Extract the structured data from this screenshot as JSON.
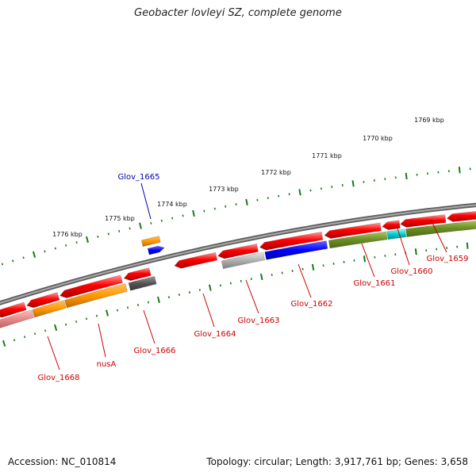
{
  "header": {
    "title": "Geobacter lovleyi SZ, complete genome"
  },
  "footer": {
    "accession": "Accession: NC_010814",
    "topology": "Topology: circular; Length: 3,917,761 bp; Genes: 3,658"
  },
  "colors": {
    "backbone": "#808080",
    "tick": "#1a7a1a",
    "gene_label": "#cc0000",
    "highlight_label": "#0000aa",
    "red": "#ff0000",
    "orange": "#ff9900",
    "blue": "#0000ff",
    "olive": "#6b8e23",
    "cyan": "#00cccc",
    "gray": "#aaaaaa",
    "darkgray": "#555555",
    "pink": "#e88888"
  },
  "scale_labels": [
    "1769 kbp",
    "1770 kbp",
    "1771 kbp",
    "1772 kbp",
    "1773 kbp",
    "1774 kbp",
    "1775 kbp",
    "1776 kbp"
  ],
  "gene_labels": [
    "Glov_1659",
    "Glov_1660",
    "Glov_1661",
    "Glov_1662",
    "Glov_1663",
    "Glov_1664",
    "Glov_1666",
    "nusA",
    "Glov_1668"
  ],
  "highlight_label": "Glov_1665"
}
